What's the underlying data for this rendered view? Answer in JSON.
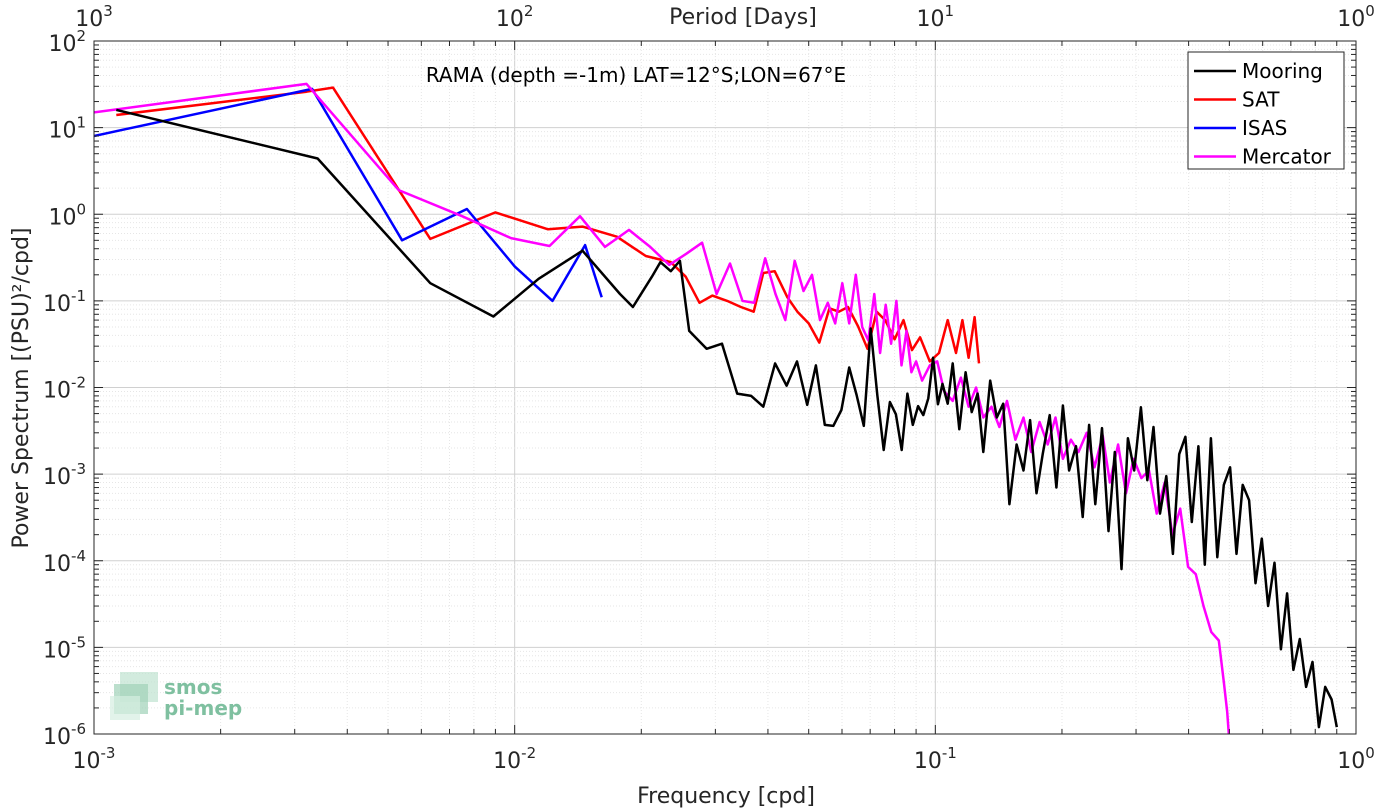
{
  "chart_data": {
    "type": "line",
    "title": "RAMA (depth =-1m) LAT=12°S;LON=67°E",
    "xlabel": "Frequency [cpd]",
    "ylabel": "Power Spectrum [(PSU)²/cpd]",
    "top_xlabel": "Period [Days]",
    "xscale": "log",
    "yscale": "log",
    "xlim": [
      0.001,
      1
    ],
    "ylim": [
      1e-06,
      100
    ],
    "x_ticks": [
      {
        "base": "10",
        "exp": "-3"
      },
      {
        "base": "10",
        "exp": "-2"
      },
      {
        "base": "10",
        "exp": "-1"
      },
      {
        "base": "10",
        "exp": "0"
      }
    ],
    "y_ticks": [
      {
        "base": "10",
        "exp": "-6"
      },
      {
        "base": "10",
        "exp": "-5"
      },
      {
        "base": "10",
        "exp": "-4"
      },
      {
        "base": "10",
        "exp": "-3"
      },
      {
        "base": "10",
        "exp": "-2"
      },
      {
        "base": "10",
        "exp": "-1"
      },
      {
        "base": "10",
        "exp": "0"
      },
      {
        "base": "10",
        "exp": "1"
      },
      {
        "base": "10",
        "exp": "2"
      }
    ],
    "top_ticks": [
      {
        "base": "10",
        "exp": "3"
      },
      {
        "base": "10",
        "exp": "2"
      },
      {
        "base": "10",
        "exp": "1"
      },
      {
        "base": "10",
        "exp": "0"
      }
    ],
    "grid": true,
    "legend_position": "top-right",
    "series": [
      {
        "name": "Mooring",
        "color": "#000000",
        "x": [
          0.00113,
          0.0034,
          0.0063,
          0.0089,
          0.0114,
          0.0145,
          0.0178,
          0.0191,
          0.0212,
          0.0222,
          0.0235,
          0.0247,
          0.026,
          0.0286,
          0.0311,
          0.0338,
          0.0365,
          0.039,
          0.0416,
          0.0443,
          0.0469,
          0.0496,
          0.052,
          0.0546,
          0.0572,
          0.0598,
          0.0624,
          0.065,
          0.0676,
          0.0702,
          0.0728,
          0.0754,
          0.078,
          0.0806,
          0.0832,
          0.0858,
          0.0884,
          0.091,
          0.0936,
          0.0962,
          0.0988,
          0.1014,
          0.104,
          0.107,
          0.11,
          0.114,
          0.118,
          0.122,
          0.126,
          0.13,
          0.135,
          0.14,
          0.145,
          0.15,
          0.156,
          0.162,
          0.168,
          0.174,
          0.18,
          0.187,
          0.194,
          0.201,
          0.208,
          0.216,
          0.224,
          0.232,
          0.24,
          0.249,
          0.258,
          0.267,
          0.277,
          0.287,
          0.297,
          0.308,
          0.319,
          0.33,
          0.342,
          0.354,
          0.367,
          0.38,
          0.393,
          0.407,
          0.422,
          0.437,
          0.452,
          0.468,
          0.485,
          0.502,
          0.52,
          0.538,
          0.557,
          0.577,
          0.597,
          0.618,
          0.64,
          0.663,
          0.686,
          0.71,
          0.735,
          0.761,
          0.788,
          0.816,
          0.845,
          0.875,
          0.9
        ],
        "y": [
          16,
          4.4,
          0.16,
          0.066,
          0.18,
          0.38,
          0.12,
          0.085,
          0.19,
          0.28,
          0.22,
          0.29,
          0.045,
          0.028,
          0.032,
          0.0085,
          0.008,
          0.006,
          0.019,
          0.0105,
          0.02,
          0.0063,
          0.018,
          0.0037,
          0.0036,
          0.0055,
          0.017,
          0.0082,
          0.0036,
          0.048,
          0.0082,
          0.0019,
          0.0068,
          0.0049,
          0.0019,
          0.0085,
          0.0037,
          0.0061,
          0.0048,
          0.0075,
          0.022,
          0.0064,
          0.011,
          0.0065,
          0.019,
          0.0033,
          0.015,
          0.0052,
          0.0085,
          0.0018,
          0.012,
          0.0045,
          0.0065,
          0.00045,
          0.0022,
          0.0011,
          0.0042,
          0.0006,
          0.0017,
          0.0048,
          0.0007,
          0.0062,
          0.0011,
          0.0021,
          0.00032,
          0.0037,
          0.00045,
          0.0034,
          0.00022,
          0.0018,
          8e-05,
          0.0026,
          0.0011,
          0.0059,
          0.00085,
          0.0035,
          0.00035,
          0.00095,
          0.00012,
          0.0017,
          0.0027,
          0.00028,
          0.0021,
          9e-05,
          0.0026,
          0.00011,
          0.00075,
          0.0012,
          0.00012,
          0.00075,
          0.0005,
          5.5e-05,
          0.00018,
          3e-05,
          9.5e-05,
          9.5e-06,
          4.2e-05,
          5.5e-06,
          1.25e-05,
          3.5e-06,
          6.8e-06,
          1.2e-06,
          3.5e-06,
          2.5e-06,
          1.2e-06
        ]
      },
      {
        "name": "SAT",
        "color": "#ff0000",
        "x": [
          0.00113,
          0.0032,
          0.0037,
          0.0063,
          0.009,
          0.012,
          0.0145,
          0.0175,
          0.0205,
          0.0235,
          0.0255,
          0.0275,
          0.0295,
          0.032,
          0.0345,
          0.037,
          0.039,
          0.0415,
          0.0445,
          0.047,
          0.05,
          0.053,
          0.056,
          0.059,
          0.062,
          0.0655,
          0.069,
          0.0725,
          0.076,
          0.08,
          0.084,
          0.088,
          0.092,
          0.097,
          0.102,
          0.107,
          0.112,
          0.116,
          0.12,
          0.124,
          0.127
        ],
        "y": [
          14,
          26,
          29,
          0.52,
          1.05,
          0.67,
          0.72,
          0.55,
          0.33,
          0.28,
          0.19,
          0.095,
          0.115,
          0.1,
          0.085,
          0.075,
          0.21,
          0.22,
          0.11,
          0.075,
          0.055,
          0.033,
          0.082,
          0.075,
          0.085,
          0.051,
          0.028,
          0.075,
          0.06,
          0.036,
          0.06,
          0.027,
          0.038,
          0.02,
          0.025,
          0.06,
          0.025,
          0.06,
          0.022,
          0.065,
          0.019
        ]
      },
      {
        "name": "ISAS",
        "color": "#0000ff",
        "x": [
          0.001,
          0.0033,
          0.0054,
          0.0077,
          0.01,
          0.0123,
          0.0147,
          0.0161
        ],
        "y": [
          8,
          28,
          0.5,
          1.15,
          0.25,
          0.1,
          0.44,
          0.11
        ]
      },
      {
        "name": "Mercator",
        "color": "#ff00ff",
        "x": [
          0.001,
          0.0032,
          0.0053,
          0.0075,
          0.0098,
          0.0121,
          0.0143,
          0.0164,
          0.0187,
          0.021,
          0.0233,
          0.0256,
          0.0279,
          0.0302,
          0.0325,
          0.0348,
          0.0371,
          0.0394,
          0.0417,
          0.044,
          0.0463,
          0.0486,
          0.0509,
          0.0532,
          0.0555,
          0.0578,
          0.0601,
          0.0624,
          0.0647,
          0.067,
          0.0693,
          0.0716,
          0.0739,
          0.0762,
          0.0785,
          0.0808,
          0.0831,
          0.0854,
          0.0877,
          0.09,
          0.093,
          0.097,
          0.101,
          0.105,
          0.11,
          0.115,
          0.12,
          0.125,
          0.13,
          0.136,
          0.142,
          0.148,
          0.155,
          0.162,
          0.169,
          0.177,
          0.185,
          0.193,
          0.201,
          0.21,
          0.219,
          0.229,
          0.239,
          0.25,
          0.26,
          0.272,
          0.284,
          0.296,
          0.309,
          0.322,
          0.336,
          0.351,
          0.366,
          0.382,
          0.399,
          0.416,
          0.434,
          0.453,
          0.472,
          0.485,
          0.494,
          0.5
        ],
        "y": [
          15,
          32,
          1.9,
          0.95,
          0.53,
          0.43,
          0.95,
          0.42,
          0.66,
          0.42,
          0.26,
          0.35,
          0.47,
          0.12,
          0.27,
          0.1,
          0.095,
          0.31,
          0.12,
          0.06,
          0.29,
          0.13,
          0.2,
          0.06,
          0.095,
          0.055,
          0.16,
          0.055,
          0.2,
          0.05,
          0.035,
          0.12,
          0.025,
          0.09,
          0.032,
          0.1,
          0.018,
          0.045,
          0.015,
          0.02,
          0.012,
          0.018,
          0.02,
          0.009,
          0.007,
          0.013,
          0.006,
          0.01,
          0.0045,
          0.006,
          0.0035,
          0.007,
          0.0025,
          0.0045,
          0.0018,
          0.004,
          0.0022,
          0.0045,
          0.0015,
          0.0025,
          0.0018,
          0.003,
          0.0012,
          0.0028,
          0.0008,
          0.0022,
          0.0006,
          0.0015,
          0.0009,
          0.0011,
          0.00035,
          0.0008,
          0.0002,
          0.0004,
          8.5e-05,
          7e-05,
          3e-05,
          1.5e-05,
          1.2e-05,
          4e-06,
          1.8e-06,
          8e-07
        ]
      }
    ]
  },
  "logo": {
    "line1": "smos",
    "line2": "pi-mep"
  }
}
